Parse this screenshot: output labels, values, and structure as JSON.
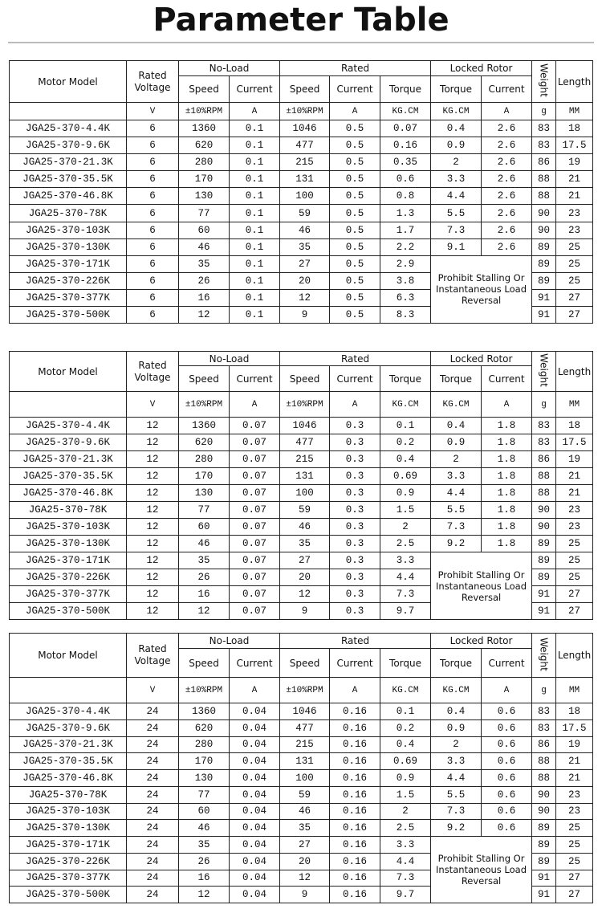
{
  "title": "Parameter Table",
  "headers": {
    "motor_model": "Motor Model",
    "rated_voltage": "Rated Voltage",
    "no_load": "No-Load",
    "rated": "Rated",
    "locked_rotor": "Locked Rotor",
    "weight": "Weight",
    "length": "Length",
    "speed": "Speed",
    "current": "Current",
    "torque": "Torque"
  },
  "units": [
    "V",
    "±10%RPM",
    "A",
    "±10%RPM",
    "A",
    "KG.CM",
    "KG.CM",
    "A",
    "g",
    "MM"
  ],
  "note": "Prohibit Stalling Or Instantaneous Load Reversal",
  "tables": [
    {
      "voltage": "6",
      "rows": [
        [
          "JGA25-370-4.4K",
          "6",
          "1360",
          "0.1",
          "1046",
          "0.5",
          "0.07",
          "0.4",
          "2.6",
          "83",
          "18"
        ],
        [
          "JGA25-370-9.6K",
          "6",
          "620",
          "0.1",
          "477",
          "0.5",
          "0.16",
          "0.9",
          "2.6",
          "83",
          "17.5"
        ],
        [
          "JGA25-370-21.3K",
          "6",
          "280",
          "0.1",
          "215",
          "0.5",
          "0.35",
          "2",
          "2.6",
          "86",
          "19"
        ],
        [
          "JGA25-370-35.5K",
          "6",
          "170",
          "0.1",
          "131",
          "0.5",
          "0.6",
          "3.3",
          "2.6",
          "88",
          "21"
        ],
        [
          "JGA25-370-46.8K",
          "6",
          "130",
          "0.1",
          "100",
          "0.5",
          "0.8",
          "4.4",
          "2.6",
          "88",
          "21"
        ],
        [
          "JGA25-370-78K",
          "6",
          "77",
          "0.1",
          "59",
          "0.5",
          "1.3",
          "5.5",
          "2.6",
          "90",
          "23"
        ],
        [
          "JGA25-370-103K",
          "6",
          "60",
          "0.1",
          "46",
          "0.5",
          "1.7",
          "7.3",
          "2.6",
          "90",
          "23"
        ],
        [
          "JGA25-370-130K",
          "6",
          "46",
          "0.1",
          "35",
          "0.5",
          "2.2",
          "9.1",
          "2.6",
          "89",
          "25"
        ],
        [
          "JGA25-370-171K",
          "6",
          "35",
          "0.1",
          "27",
          "0.5",
          "2.9",
          "",
          "",
          "89",
          "25"
        ],
        [
          "JGA25-370-226K",
          "6",
          "26",
          "0.1",
          "20",
          "0.5",
          "3.8",
          "",
          "",
          "89",
          "25"
        ],
        [
          "JGA25-370-377K",
          "6",
          "16",
          "0.1",
          "12",
          "0.5",
          "6.3",
          "",
          "",
          "91",
          "27"
        ],
        [
          "JGA25-370-500K",
          "6",
          "12",
          "0.1",
          "9",
          "0.5",
          "8.3",
          "",
          "",
          "91",
          "27"
        ]
      ]
    },
    {
      "voltage": "12",
      "rows": [
        [
          "JGA25-370-4.4K",
          "12",
          "1360",
          "0.07",
          "1046",
          "0.3",
          "0.1",
          "0.4",
          "1.8",
          "83",
          "18"
        ],
        [
          "JGA25-370-9.6K",
          "12",
          "620",
          "0.07",
          "477",
          "0.3",
          "0.2",
          "0.9",
          "1.8",
          "83",
          "17.5"
        ],
        [
          "JGA25-370-21.3K",
          "12",
          "280",
          "0.07",
          "215",
          "0.3",
          "0.4",
          "2",
          "1.8",
          "86",
          "19"
        ],
        [
          "JGA25-370-35.5K",
          "12",
          "170",
          "0.07",
          "131",
          "0.3",
          "0.69",
          "3.3",
          "1.8",
          "88",
          "21"
        ],
        [
          "JGA25-370-46.8K",
          "12",
          "130",
          "0.07",
          "100",
          "0.3",
          "0.9",
          "4.4",
          "1.8",
          "88",
          "21"
        ],
        [
          "JGA25-370-78K",
          "12",
          "77",
          "0.07",
          "59",
          "0.3",
          "1.5",
          "5.5",
          "1.8",
          "90",
          "23"
        ],
        [
          "JGA25-370-103K",
          "12",
          "60",
          "0.07",
          "46",
          "0.3",
          "2",
          "7.3",
          "1.8",
          "90",
          "23"
        ],
        [
          "JGA25-370-130K",
          "12",
          "46",
          "0.07",
          "35",
          "0.3",
          "2.5",
          "9.2",
          "1.8",
          "89",
          "25"
        ],
        [
          "JGA25-370-171K",
          "12",
          "35",
          "0.07",
          "27",
          "0.3",
          "3.3",
          "",
          "",
          "89",
          "25"
        ],
        [
          "JGA25-370-226K",
          "12",
          "26",
          "0.07",
          "20",
          "0.3",
          "4.4",
          "",
          "",
          "89",
          "25"
        ],
        [
          "JGA25-370-377K",
          "12",
          "16",
          "0.07",
          "12",
          "0.3",
          "7.3",
          "",
          "",
          "91",
          "27"
        ],
        [
          "JGA25-370-500K",
          "12",
          "12",
          "0.07",
          "9",
          "0.3",
          "9.7",
          "",
          "",
          "91",
          "27"
        ]
      ]
    },
    {
      "voltage": "24",
      "rows": [
        [
          "JGA25-370-4.4K",
          "24",
          "1360",
          "0.04",
          "1046",
          "0.16",
          "0.1",
          "0.4",
          "0.6",
          "83",
          "18"
        ],
        [
          "JGA25-370-9.6K",
          "24",
          "620",
          "0.04",
          "477",
          "0.16",
          "0.2",
          "0.9",
          "0.6",
          "83",
          "17.5"
        ],
        [
          "JGA25-370-21.3K",
          "24",
          "280",
          "0.04",
          "215",
          "0.16",
          "0.4",
          "2",
          "0.6",
          "86",
          "19"
        ],
        [
          "JGA25-370-35.5K",
          "24",
          "170",
          "0.04",
          "131",
          "0.16",
          "0.69",
          "3.3",
          "0.6",
          "88",
          "21"
        ],
        [
          "JGA25-370-46.8K",
          "24",
          "130",
          "0.04",
          "100",
          "0.16",
          "0.9",
          "4.4",
          "0.6",
          "88",
          "21"
        ],
        [
          "JGA25-370-78K",
          "24",
          "77",
          "0.04",
          "59",
          "0.16",
          "1.5",
          "5.5",
          "0.6",
          "90",
          "23"
        ],
        [
          "JGA25-370-103K",
          "24",
          "60",
          "0.04",
          "46",
          "0.16",
          "2",
          "7.3",
          "0.6",
          "90",
          "23"
        ],
        [
          "JGA25-370-130K",
          "24",
          "46",
          "0.04",
          "35",
          "0.16",
          "2.5",
          "9.2",
          "0.6",
          "89",
          "25"
        ],
        [
          "JGA25-370-171K",
          "24",
          "35",
          "0.04",
          "27",
          "0.16",
          "3.3",
          "",
          "",
          "89",
          "25"
        ],
        [
          "JGA25-370-226K",
          "24",
          "26",
          "0.04",
          "20",
          "0.16",
          "4.4",
          "",
          "",
          "89",
          "25"
        ],
        [
          "JGA25-370-377K",
          "24",
          "16",
          "0.04",
          "12",
          "0.16",
          "7.3",
          "",
          "",
          "91",
          "27"
        ],
        [
          "JGA25-370-500K",
          "24",
          "12",
          "0.04",
          "9",
          "0.16",
          "9.7",
          "",
          "",
          "91",
          "27"
        ]
      ]
    }
  ]
}
